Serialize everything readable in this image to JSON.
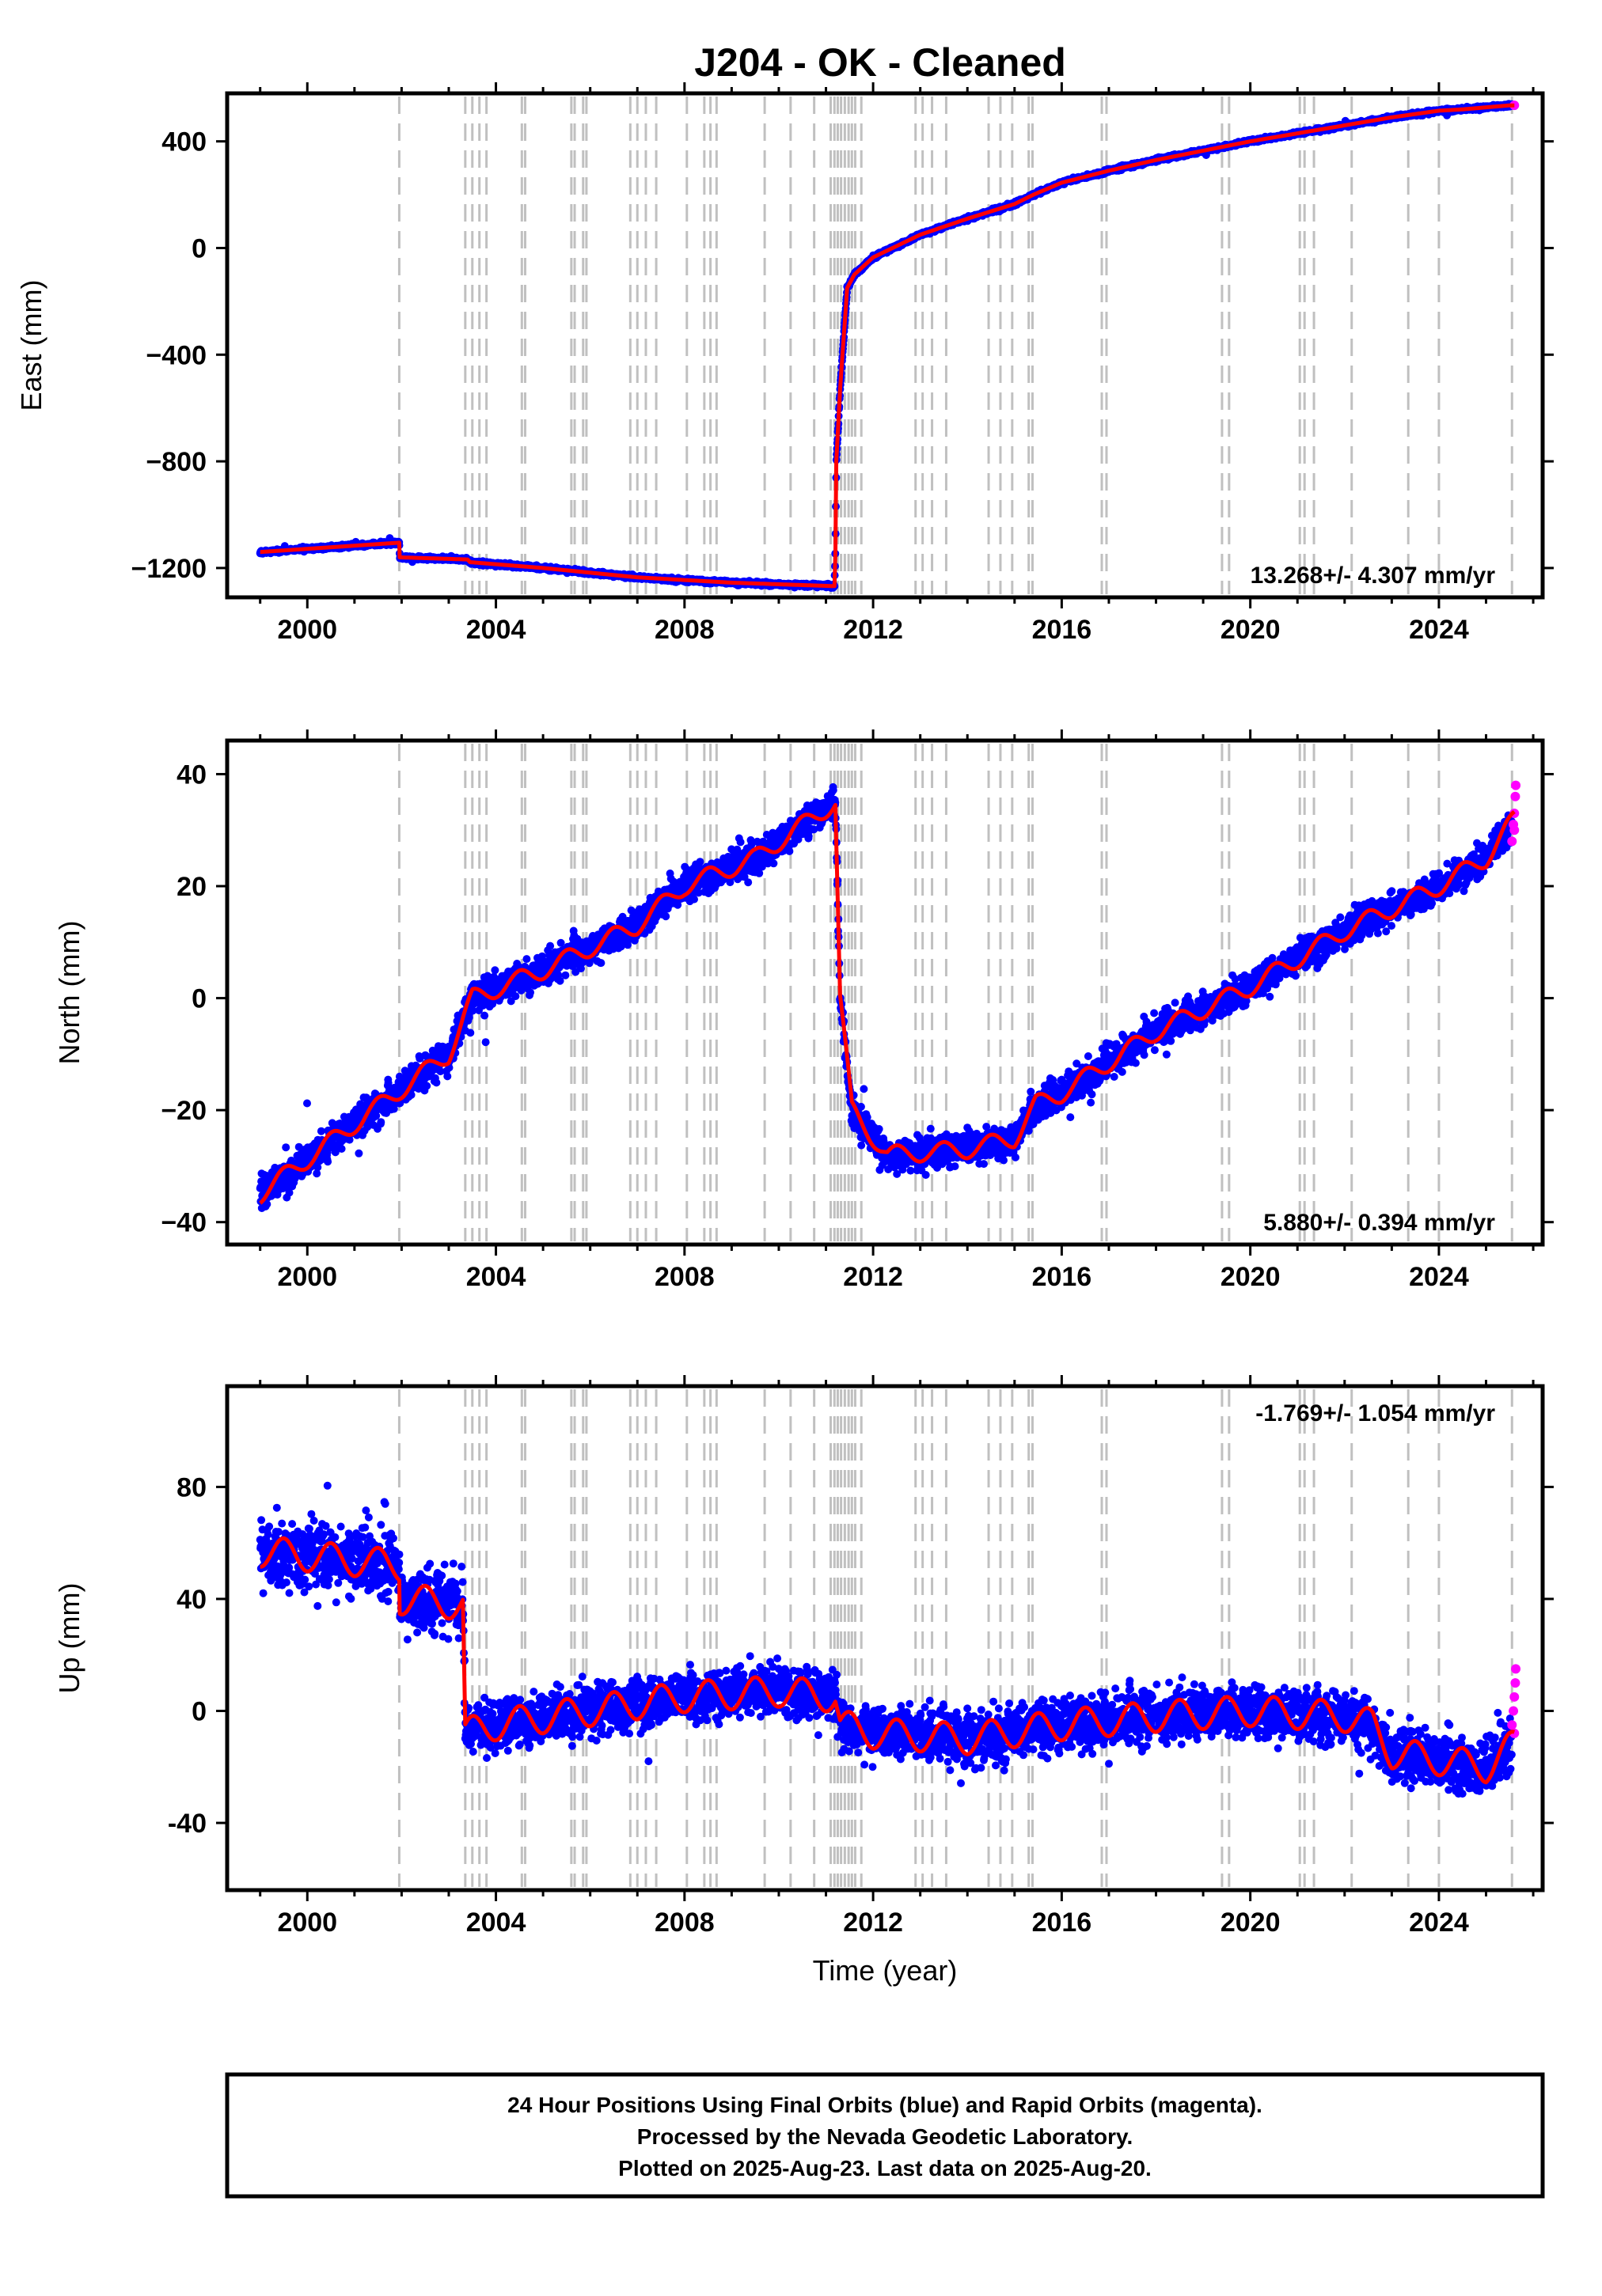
{
  "title": "J204  - OK - Cleaned",
  "footer": {
    "line1": "24 Hour Positions Using Final Orbits (blue) and Rapid Orbits (magenta).",
    "line2": "Processed by the Nevada Geodetic Laboratory.",
    "line3": "Plotted on 2025-Aug-23. Last data on 2025-Aug-20."
  },
  "colors": {
    "final_orbits": "#0000ff",
    "rapid_orbits": "#ff00ff",
    "model": "#ff0000",
    "event_lines": "#c0c0c0"
  },
  "chart_data": [
    {
      "type": "scatter",
      "name": "east",
      "ylabel": "East (mm)",
      "xlabel": "",
      "xlim": [
        1998.3,
        2026.2
      ],
      "ylim": [
        -1310,
        580
      ],
      "x_ticks": [
        2000,
        2004,
        2008,
        2012,
        2016,
        2020,
        2024
      ],
      "y_ticks": [
        -1200,
        -800,
        -400,
        0,
        400
      ],
      "y_tick_labels": [
        "−1200",
        "−800",
        "−400",
        "0",
        "400"
      ],
      "rate_text": "13.268+/- 4.307 mm/yr",
      "rate_position": "bottom-right",
      "model": [
        [
          1999.0,
          -1140
        ],
        [
          2001.95,
          -1105
        ],
        [
          2001.96,
          -1160
        ],
        [
          2003.4,
          -1168
        ],
        [
          2003.45,
          -1178
        ],
        [
          2005.0,
          -1200
        ],
        [
          2007.0,
          -1235
        ],
        [
          2009.0,
          -1255
        ],
        [
          2011.18,
          -1268
        ],
        [
          2011.2,
          -1140
        ],
        [
          2011.22,
          -800
        ],
        [
          2011.3,
          -530
        ],
        [
          2011.35,
          -400
        ],
        [
          2011.45,
          -150
        ],
        [
          2011.6,
          -100
        ],
        [
          2012.0,
          -35
        ],
        [
          2013.0,
          50
        ],
        [
          2014.0,
          110
        ],
        [
          2015.0,
          165
        ],
        [
          2015.4,
          200
        ],
        [
          2016.0,
          245
        ],
        [
          2017.0,
          290
        ],
        [
          2018.0,
          330
        ],
        [
          2019.0,
          365
        ],
        [
          2020.0,
          400
        ],
        [
          2021.0,
          430
        ],
        [
          2022.0,
          460
        ],
        [
          2023.0,
          490
        ],
        [
          2024.0,
          515
        ],
        [
          2024.5,
          520
        ],
        [
          2025.5,
          535
        ]
      ]
    },
    {
      "type": "scatter",
      "name": "north",
      "ylabel": "North (mm)",
      "xlabel": "",
      "xlim": [
        1998.3,
        2026.2
      ],
      "ylim": [
        -44,
        46
      ],
      "x_ticks": [
        2000,
        2004,
        2008,
        2012,
        2016,
        2020,
        2024
      ],
      "y_ticks": [
        -40,
        -20,
        0,
        20,
        40
      ],
      "y_tick_labels": [
        "−40",
        "−20",
        "0",
        "20",
        "40"
      ],
      "rate_text": "5.880+/- 0.394 mm/yr",
      "rate_position": "bottom-right",
      "model": [
        [
          1999.0,
          -35
        ],
        [
          2003.0,
          -10
        ],
        [
          2003.5,
          0
        ],
        [
          2005.0,
          5
        ],
        [
          2007.0,
          13
        ],
        [
          2008.0,
          20
        ],
        [
          2009.5,
          25
        ],
        [
          2011.2,
          35
        ],
        [
          2011.3,
          0
        ],
        [
          2011.55,
          -20
        ],
        [
          2012.3,
          -28
        ],
        [
          2014.0,
          -27
        ],
        [
          2015.0,
          -25
        ],
        [
          2015.45,
          -19
        ],
        [
          2016.0,
          -17
        ],
        [
          2018.0,
          -6
        ],
        [
          2020.0,
          2
        ],
        [
          2022.0,
          12
        ],
        [
          2024.0,
          20
        ],
        [
          2025.0,
          25
        ],
        [
          2025.6,
          32
        ]
      ],
      "rapid_points": [
        [
          2025.55,
          28
        ],
        [
          2025.58,
          31
        ],
        [
          2025.6,
          33
        ],
        [
          2025.62,
          36
        ],
        [
          2025.63,
          38
        ],
        [
          2025.6,
          30
        ]
      ]
    },
    {
      "type": "scatter",
      "name": "up",
      "ylabel": "Up (mm)",
      "xlabel": "Time (year)",
      "xlim": [
        1998.3,
        2026.2
      ],
      "ylim": [
        -64,
        116
      ],
      "x_ticks": [
        2000,
        2004,
        2008,
        2012,
        2016,
        2020,
        2024
      ],
      "y_ticks": [
        -40,
        0,
        40,
        80
      ],
      "y_tick_labels": [
        "-40",
        "0",
        "40",
        "80"
      ],
      "rate_text": "-1.769+/- 1.054 mm/yr",
      "rate_position": "top-right",
      "model": [
        [
          1999.0,
          57
        ],
        [
          2001.95,
          52
        ],
        [
          2001.96,
          40
        ],
        [
          2003.3,
          38
        ],
        [
          2003.35,
          -8
        ],
        [
          2004.0,
          -5
        ],
        [
          2006.0,
          0
        ],
        [
          2008.0,
          5
        ],
        [
          2010.0,
          7
        ],
        [
          2011.2,
          5
        ],
        [
          2011.3,
          -5
        ],
        [
          2012.0,
          -8
        ],
        [
          2014.0,
          -10
        ],
        [
          2016.0,
          -5
        ],
        [
          2018.0,
          -2
        ],
        [
          2020.0,
          0
        ],
        [
          2022.0,
          -2
        ],
        [
          2022.6,
          -5
        ],
        [
          2023.0,
          -15
        ],
        [
          2025.0,
          -20
        ],
        [
          2025.6,
          -12
        ]
      ],
      "rapid_points": [
        [
          2025.55,
          -5
        ],
        [
          2025.58,
          0
        ],
        [
          2025.6,
          5
        ],
        [
          2025.62,
          10
        ],
        [
          2025.63,
          15
        ],
        [
          2025.6,
          -8
        ]
      ]
    }
  ]
}
